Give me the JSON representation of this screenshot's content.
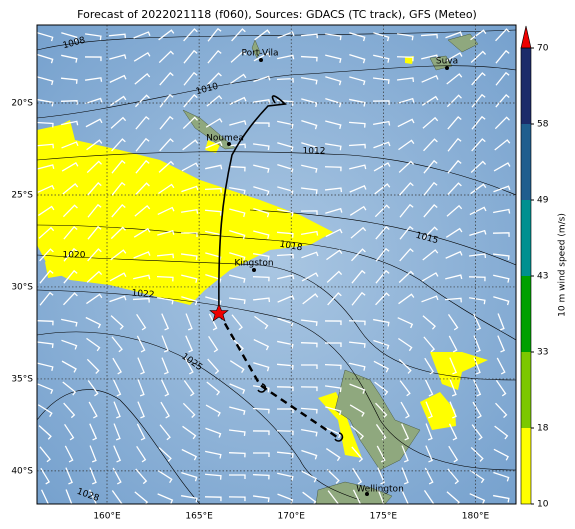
{
  "title": "Forecast of 2022021118 (f060), Sources: GDACS (TC track), GFS (Meteo)",
  "map": {
    "xlim": [
      156.2,
      182.2
    ],
    "ylim": [
      -41.8,
      -15.76
    ],
    "lon_ticks": [
      {
        "value": 160,
        "label": "160°E"
      },
      {
        "value": 165,
        "label": "165°E"
      },
      {
        "value": 170,
        "label": "170°E"
      },
      {
        "value": 175,
        "label": "175°E"
      },
      {
        "value": 180,
        "label": "180°E"
      }
    ],
    "lat_ticks": [
      {
        "value": -20,
        "label": "20°S"
      },
      {
        "value": -25,
        "label": "25°S"
      },
      {
        "value": -30,
        "label": "30°S"
      },
      {
        "value": -35,
        "label": "35°S"
      },
      {
        "value": -40,
        "label": "40°S"
      }
    ],
    "places": [
      "Port-Vila",
      "Suva",
      "Noumea",
      "Kingston",
      "Wellington"
    ],
    "isobar_labels": [
      "1008",
      "1010",
      "1012",
      "1015",
      "1018",
      "1020",
      "1022",
      "1025",
      "1028"
    ]
  },
  "colorbar": {
    "label": "10 m wind speed (m/s)",
    "ticks": [
      10,
      18,
      33,
      43,
      49,
      58,
      70
    ],
    "colors": [
      "#ffff00",
      "#7cc800",
      "#00a000",
      "#009090",
      "#1f5e8e",
      "#1c2b6a"
    ],
    "extend_color": "#ee0000"
  }
}
